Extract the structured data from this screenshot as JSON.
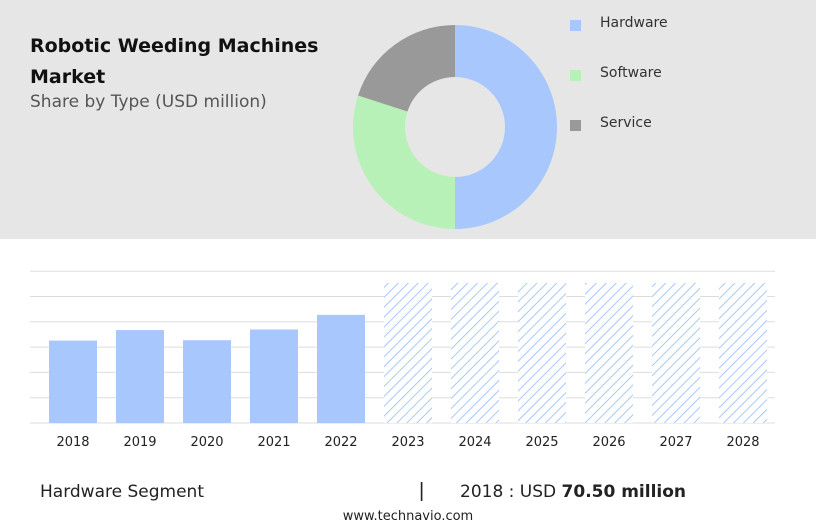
{
  "header": {
    "title": "Robotic Weeding Machines Market",
    "subtitle": "Share by Type (USD million)"
  },
  "chart_data": [
    {
      "type": "pie",
      "variant": "donut",
      "slices": [
        {
          "label": "Hardware",
          "value": 50,
          "color": "#a8c8fd"
        },
        {
          "label": "Software",
          "value": 30,
          "color": "#b8f1b8"
        },
        {
          "label": "Service",
          "value": 20,
          "color": "#999999"
        }
      ],
      "legend_position": "right"
    },
    {
      "type": "bar",
      "categories": [
        "2018",
        "2019",
        "2020",
        "2021",
        "2022",
        "2023",
        "2024",
        "2025",
        "2026",
        "2027",
        "2028"
      ],
      "values": [
        70.5,
        79.5,
        70.8,
        80.0,
        92.5,
        null,
        null,
        null,
        null,
        null,
        null
      ],
      "forecast_categories": [
        "2023",
        "2024",
        "2025",
        "2026",
        "2027",
        "2028"
      ],
      "ylim": [
        0,
        130
      ],
      "grid": true,
      "bar_color": "#a8c8fd",
      "forecast_fill": "hatched"
    }
  ],
  "footer": {
    "segment_label": "Hardware Segment",
    "separator": "|",
    "year_prefix": "2018 : USD",
    "year_value": "70.50 million",
    "source": "www.technavio.com"
  }
}
